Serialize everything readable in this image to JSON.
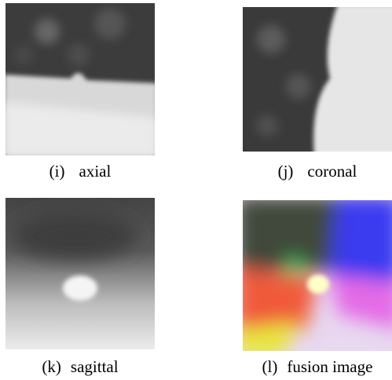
{
  "panels": [
    {
      "label": "(i)",
      "name": "axial"
    },
    {
      "label": "(j)",
      "name": "coronal"
    },
    {
      "label": "(k)",
      "name": "sagittal"
    },
    {
      "label": "(l)",
      "name": "fusion image"
    }
  ]
}
